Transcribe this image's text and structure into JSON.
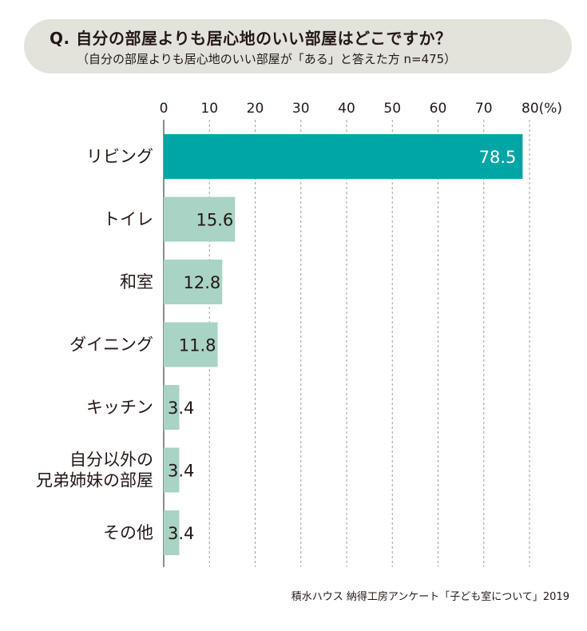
{
  "header": {
    "question": "Q. 自分の部屋よりも居心地のいい部屋はどこですか？",
    "subtitle": "（自分の部屋よりも居心地のいい部屋が「ある」と答えた方 n=475）"
  },
  "source": "積水ハウス 納得工房アンケート「子ども室について」2019",
  "colors": {
    "highlight": "#00a5a6",
    "bar": "#a9d3c4",
    "grid": "#9e9e9e",
    "header_bg": "#e3e3dc"
  },
  "chart_data": {
    "type": "bar",
    "orientation": "horizontal",
    "categories": [
      [
        "リビング"
      ],
      [
        "トイレ"
      ],
      [
        "和室"
      ],
      [
        "ダイニング"
      ],
      [
        "キッチン"
      ],
      [
        "自分以外の",
        "兄弟姉妹の部屋"
      ],
      [
        "その他"
      ]
    ],
    "values": [
      78.5,
      15.6,
      12.8,
      11.8,
      3.4,
      3.4,
      3.4
    ],
    "value_labels": [
      "78.5",
      "15.6",
      "12.8",
      "11.8",
      "3.4",
      "3.4",
      "3.4"
    ],
    "xlim": [
      0,
      80
    ],
    "ticks": [
      "0",
      "10",
      "20",
      "30",
      "40",
      "50",
      "60",
      "70",
      "80(%)"
    ],
    "tick_values": [
      0,
      10,
      20,
      30,
      40,
      50,
      60,
      70,
      80
    ],
    "grid": true,
    "highlight_index": 0
  }
}
